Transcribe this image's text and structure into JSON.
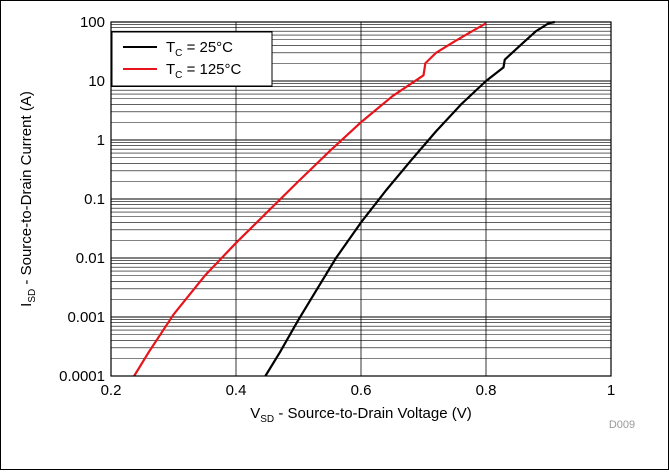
{
  "chart_data": {
    "type": "line",
    "xlabel": {
      "main": "V",
      "sub": "SD",
      "rest": " - Source-to-Drain Voltage (V)"
    },
    "ylabel": {
      "main": "I",
      "sub": "SD",
      "rest": " - Source-to-Drain Current (A)"
    },
    "xlim": [
      0.2,
      1.0
    ],
    "ylim": [
      0.0001,
      100
    ],
    "y_scale": "log",
    "grid": true,
    "legend_position": "top-left",
    "x_ticks": [
      "0.2",
      "0.4",
      "0.6",
      "0.8",
      "1"
    ],
    "y_ticks": [
      "0.0001",
      "0.001",
      "0.01",
      "0.1",
      "1",
      "10",
      "100"
    ],
    "annotation": "D009",
    "series": [
      {
        "name": {
          "main": "T",
          "sub": "C",
          "rest": " = 25°C"
        },
        "color": "#000000",
        "x": [
          0.447,
          0.47,
          0.5,
          0.53,
          0.56,
          0.6,
          0.64,
          0.68,
          0.72,
          0.76,
          0.8,
          0.828,
          0.83,
          0.86,
          0.88,
          0.9,
          0.91
        ],
        "y": [
          0.0001,
          0.00025,
          0.0009,
          0.003,
          0.01,
          0.04,
          0.14,
          0.45,
          1.4,
          4.0,
          10,
          17,
          23,
          45,
          70,
          95,
          100
        ]
      },
      {
        "name": {
          "main": "T",
          "sub": "C",
          "rest": " = 125°C"
        },
        "color": "#e8141b",
        "x": [
          0.237,
          0.26,
          0.3,
          0.35,
          0.4,
          0.45,
          0.5,
          0.55,
          0.6,
          0.65,
          0.7,
          0.703,
          0.72,
          0.75,
          0.78,
          0.8
        ],
        "y": [
          0.0001,
          0.00025,
          0.0011,
          0.005,
          0.018,
          0.06,
          0.2,
          0.65,
          2.0,
          5.5,
          12.5,
          20,
          30,
          47,
          72,
          95
        ]
      }
    ]
  }
}
